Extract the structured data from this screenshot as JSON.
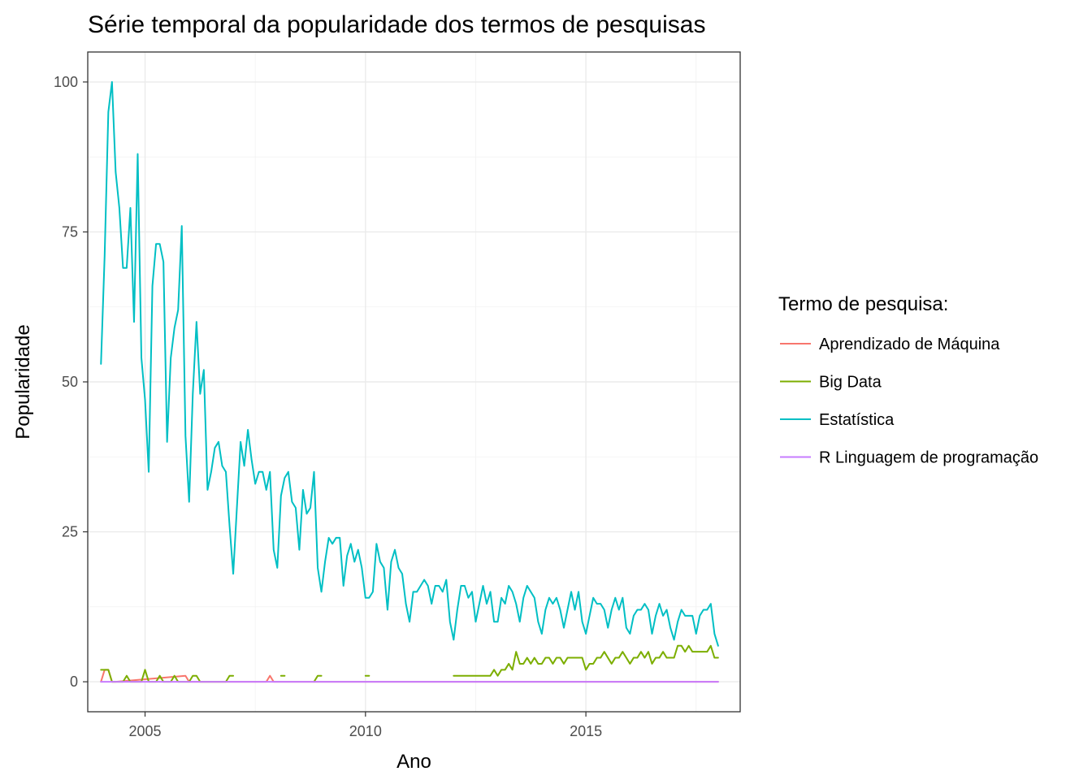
{
  "chart_data": {
    "type": "line",
    "title": "Série temporal da popularidade dos termos de pesquisas",
    "xlabel": "Ano",
    "ylabel": "Popularidade",
    "xlim": [
      2003.7,
      2018.5
    ],
    "ylim": [
      -5,
      105
    ],
    "x_ticks": [
      2005,
      2010,
      2015
    ],
    "x_tick_labels": [
      "2005",
      "2010",
      "2015"
    ],
    "y_ticks": [
      0,
      25,
      50,
      75,
      100
    ],
    "y_tick_labels": [
      "0",
      "25",
      "50",
      "75",
      "100"
    ],
    "grid": true,
    "legend": {
      "title": "Termo de pesquisa:",
      "placement": "right"
    },
    "series": [
      {
        "name": "Aprendizado de Máquina",
        "color": "#F8766D",
        "points": [
          [
            2004.0,
            0
          ],
          [
            2004.083,
            2
          ],
          [
            2004.167,
            2
          ],
          [
            2004.25,
            0
          ],
          [
            2004.333,
            0
          ],
          [
            2005.917,
            1
          ],
          [
            2006.0,
            0
          ],
          [
            2007.75,
            0
          ],
          [
            2007.833,
            1
          ],
          [
            2007.917,
            0
          ],
          [
            2018.0,
            0
          ]
        ]
      },
      {
        "name": "Big Data",
        "color": "#7CAE00",
        "points": [
          [
            2004.0,
            2
          ],
          [
            2004.083,
            2
          ],
          [
            2004.167,
            2
          ],
          [
            2004.25,
            0
          ],
          [
            2004.5,
            0
          ],
          [
            2004.583,
            1
          ],
          [
            2004.667,
            0
          ],
          [
            2004.917,
            0
          ],
          [
            2005.0,
            2
          ],
          [
            2005.083,
            0
          ],
          [
            2005.25,
            0
          ],
          [
            2005.333,
            1
          ],
          [
            2005.417,
            0
          ],
          [
            2005.583,
            0
          ],
          [
            2005.667,
            1
          ],
          [
            2005.75,
            0
          ],
          [
            2006.0,
            0
          ],
          [
            2006.083,
            1
          ],
          [
            2006.167,
            1
          ],
          [
            2006.25,
            0
          ],
          [
            2006.833,
            0
          ],
          [
            2006.917,
            1
          ],
          [
            2007.0,
            1
          ]
        ]
      },
      {
        "name": "Big Data (a)",
        "color": "#7CAE00",
        "points": [
          [
            2008.083,
            1
          ],
          [
            2008.167,
            1
          ]
        ]
      },
      {
        "name": "Big Data (b)",
        "color": "#7CAE00",
        "points": [
          [
            2008.833,
            0
          ],
          [
            2008.917,
            1
          ],
          [
            2009.0,
            1
          ]
        ]
      },
      {
        "name": "Big Data (c)",
        "color": "#7CAE00",
        "points": [
          [
            2010.0,
            1
          ],
          [
            2010.083,
            1
          ]
        ]
      },
      {
        "name": "Big Data (d)",
        "color": "#7CAE00",
        "points": [
          [
            2012.0,
            1
          ],
          [
            2012.083,
            1
          ],
          [
            2012.167,
            1
          ],
          [
            2012.25,
            1
          ],
          [
            2012.333,
            1
          ],
          [
            2012.417,
            1
          ],
          [
            2012.5,
            1
          ],
          [
            2012.583,
            1
          ],
          [
            2012.667,
            1
          ],
          [
            2012.75,
            1
          ],
          [
            2012.833,
            1
          ],
          [
            2012.917,
            2
          ],
          [
            2013.0,
            1
          ],
          [
            2013.083,
            2
          ],
          [
            2013.167,
            2
          ],
          [
            2013.25,
            3
          ],
          [
            2013.333,
            2
          ],
          [
            2013.417,
            5
          ],
          [
            2013.5,
            3
          ],
          [
            2013.583,
            3
          ],
          [
            2013.667,
            4
          ],
          [
            2013.75,
            3
          ],
          [
            2013.833,
            4
          ],
          [
            2013.917,
            3
          ],
          [
            2014.0,
            3
          ],
          [
            2014.083,
            4
          ],
          [
            2014.167,
            4
          ],
          [
            2014.25,
            3
          ],
          [
            2014.333,
            4
          ],
          [
            2014.417,
            4
          ],
          [
            2014.5,
            3
          ],
          [
            2014.583,
            4
          ],
          [
            2014.667,
            4
          ],
          [
            2014.75,
            4
          ],
          [
            2014.833,
            4
          ],
          [
            2014.917,
            4
          ],
          [
            2015.0,
            2
          ],
          [
            2015.083,
            3
          ],
          [
            2015.167,
            3
          ],
          [
            2015.25,
            4
          ],
          [
            2015.333,
            4
          ],
          [
            2015.417,
            5
          ],
          [
            2015.5,
            4
          ],
          [
            2015.583,
            3
          ],
          [
            2015.667,
            4
          ],
          [
            2015.75,
            4
          ],
          [
            2015.833,
            5
          ],
          [
            2015.917,
            4
          ],
          [
            2016.0,
            3
          ],
          [
            2016.083,
            4
          ],
          [
            2016.167,
            4
          ],
          [
            2016.25,
            5
          ],
          [
            2016.333,
            4
          ],
          [
            2016.417,
            5
          ],
          [
            2016.5,
            3
          ],
          [
            2016.583,
            4
          ],
          [
            2016.667,
            4
          ],
          [
            2016.75,
            5
          ],
          [
            2016.833,
            4
          ],
          [
            2016.917,
            4
          ],
          [
            2017.0,
            4
          ],
          [
            2017.083,
            6
          ],
          [
            2017.167,
            6
          ],
          [
            2017.25,
            5
          ],
          [
            2017.333,
            6
          ],
          [
            2017.417,
            5
          ],
          [
            2017.5,
            5
          ],
          [
            2017.583,
            5
          ],
          [
            2017.667,
            5
          ],
          [
            2017.75,
            5
          ],
          [
            2017.833,
            6
          ],
          [
            2017.917,
            4
          ],
          [
            2018.0,
            4
          ]
        ]
      },
      {
        "name": "Estatística",
        "color": "#00BFC4",
        "points": [
          [
            2004.0,
            53
          ],
          [
            2004.083,
            71
          ],
          [
            2004.167,
            95
          ],
          [
            2004.25,
            100
          ],
          [
            2004.333,
            85
          ],
          [
            2004.417,
            79
          ],
          [
            2004.5,
            69
          ],
          [
            2004.583,
            69
          ],
          [
            2004.667,
            79
          ],
          [
            2004.75,
            60
          ],
          [
            2004.833,
            88
          ],
          [
            2004.917,
            54
          ],
          [
            2005.0,
            47
          ],
          [
            2005.083,
            35
          ],
          [
            2005.167,
            66
          ],
          [
            2005.25,
            73
          ],
          [
            2005.333,
            73
          ],
          [
            2005.417,
            70
          ],
          [
            2005.5,
            40
          ],
          [
            2005.583,
            54
          ],
          [
            2005.667,
            59
          ],
          [
            2005.75,
            62
          ],
          [
            2005.833,
            76
          ],
          [
            2005.917,
            41
          ],
          [
            2006.0,
            30
          ],
          [
            2006.083,
            48
          ],
          [
            2006.167,
            60
          ],
          [
            2006.25,
            48
          ],
          [
            2006.333,
            52
          ],
          [
            2006.417,
            32
          ],
          [
            2006.5,
            35
          ],
          [
            2006.583,
            39
          ],
          [
            2006.667,
            40
          ],
          [
            2006.75,
            36
          ],
          [
            2006.833,
            35
          ],
          [
            2006.917,
            26
          ],
          [
            2007.0,
            18
          ],
          [
            2007.083,
            29
          ],
          [
            2007.167,
            40
          ],
          [
            2007.25,
            36
          ],
          [
            2007.333,
            42
          ],
          [
            2007.417,
            37
          ],
          [
            2007.5,
            33
          ],
          [
            2007.583,
            35
          ],
          [
            2007.667,
            35
          ],
          [
            2007.75,
            32
          ],
          [
            2007.833,
            35
          ],
          [
            2007.917,
            22
          ],
          [
            2008.0,
            19
          ],
          [
            2008.083,
            31
          ],
          [
            2008.167,
            34
          ],
          [
            2008.25,
            35
          ],
          [
            2008.333,
            30
          ],
          [
            2008.417,
            29
          ],
          [
            2008.5,
            22
          ],
          [
            2008.583,
            32
          ],
          [
            2008.667,
            28
          ],
          [
            2008.75,
            29
          ],
          [
            2008.833,
            35
          ],
          [
            2008.917,
            19
          ],
          [
            2009.0,
            15
          ],
          [
            2009.083,
            20
          ],
          [
            2009.167,
            24
          ],
          [
            2009.25,
            23
          ],
          [
            2009.333,
            24
          ],
          [
            2009.417,
            24
          ],
          [
            2009.5,
            16
          ],
          [
            2009.583,
            21
          ],
          [
            2009.667,
            23
          ],
          [
            2009.75,
            20
          ],
          [
            2009.833,
            22
          ],
          [
            2009.917,
            19
          ],
          [
            2010.0,
            14
          ],
          [
            2010.083,
            14
          ],
          [
            2010.167,
            15
          ],
          [
            2010.25,
            23
          ],
          [
            2010.333,
            20
          ],
          [
            2010.417,
            19
          ],
          [
            2010.5,
            12
          ],
          [
            2010.583,
            20
          ],
          [
            2010.667,
            22
          ],
          [
            2010.75,
            19
          ],
          [
            2010.833,
            18
          ],
          [
            2010.917,
            13
          ],
          [
            2011.0,
            10
          ],
          [
            2011.083,
            15
          ],
          [
            2011.167,
            15
          ],
          [
            2011.25,
            16
          ],
          [
            2011.333,
            17
          ],
          [
            2011.417,
            16
          ],
          [
            2011.5,
            13
          ],
          [
            2011.583,
            16
          ],
          [
            2011.667,
            16
          ],
          [
            2011.75,
            15
          ],
          [
            2011.833,
            17
          ],
          [
            2011.917,
            10
          ],
          [
            2012.0,
            7
          ],
          [
            2012.083,
            12
          ],
          [
            2012.167,
            16
          ],
          [
            2012.25,
            16
          ],
          [
            2012.333,
            14
          ],
          [
            2012.417,
            15
          ],
          [
            2012.5,
            10
          ],
          [
            2012.583,
            13
          ],
          [
            2012.667,
            16
          ],
          [
            2012.75,
            13
          ],
          [
            2012.833,
            15
          ],
          [
            2012.917,
            10
          ],
          [
            2013.0,
            10
          ],
          [
            2013.083,
            14
          ],
          [
            2013.167,
            13
          ],
          [
            2013.25,
            16
          ],
          [
            2013.333,
            15
          ],
          [
            2013.417,
            13
          ],
          [
            2013.5,
            10
          ],
          [
            2013.583,
            14
          ],
          [
            2013.667,
            16
          ],
          [
            2013.75,
            15
          ],
          [
            2013.833,
            14
          ],
          [
            2013.917,
            10
          ],
          [
            2014.0,
            8
          ],
          [
            2014.083,
            12
          ],
          [
            2014.167,
            14
          ],
          [
            2014.25,
            13
          ],
          [
            2014.333,
            14
          ],
          [
            2014.417,
            12
          ],
          [
            2014.5,
            9
          ],
          [
            2014.583,
            12
          ],
          [
            2014.667,
            15
          ],
          [
            2014.75,
            12
          ],
          [
            2014.833,
            15
          ],
          [
            2014.917,
            10
          ],
          [
            2015.0,
            8
          ],
          [
            2015.083,
            11
          ],
          [
            2015.167,
            14
          ],
          [
            2015.25,
            13
          ],
          [
            2015.333,
            13
          ],
          [
            2015.417,
            12
          ],
          [
            2015.5,
            9
          ],
          [
            2015.583,
            12
          ],
          [
            2015.667,
            14
          ],
          [
            2015.75,
            12
          ],
          [
            2015.833,
            14
          ],
          [
            2015.917,
            9
          ],
          [
            2016.0,
            8
          ],
          [
            2016.083,
            11
          ],
          [
            2016.167,
            12
          ],
          [
            2016.25,
            12
          ],
          [
            2016.333,
            13
          ],
          [
            2016.417,
            12
          ],
          [
            2016.5,
            8
          ],
          [
            2016.583,
            11
          ],
          [
            2016.667,
            13
          ],
          [
            2016.75,
            11
          ],
          [
            2016.833,
            12
          ],
          [
            2016.917,
            9
          ],
          [
            2017.0,
            7
          ],
          [
            2017.083,
            10
          ],
          [
            2017.167,
            12
          ],
          [
            2017.25,
            11
          ],
          [
            2017.333,
            11
          ],
          [
            2017.417,
            11
          ],
          [
            2017.5,
            8
          ],
          [
            2017.583,
            11
          ],
          [
            2017.667,
            12
          ],
          [
            2017.75,
            12
          ],
          [
            2017.833,
            13
          ],
          [
            2017.917,
            8
          ],
          [
            2018.0,
            6
          ]
        ]
      },
      {
        "name": "R Linguagem de programação",
        "color": "#C77CFF",
        "points": [
          [
            2004.0,
            0
          ],
          [
            2018.0,
            0
          ]
        ]
      }
    ],
    "legend_entries": [
      {
        "name": "Aprendizado de Máquina",
        "color": "#F8766D"
      },
      {
        "name": "Big Data",
        "color": "#7CAE00"
      },
      {
        "name": "Estatística",
        "color": "#00BFC4"
      },
      {
        "name": "R Linguagem de programação",
        "color": "#C77CFF"
      }
    ]
  }
}
